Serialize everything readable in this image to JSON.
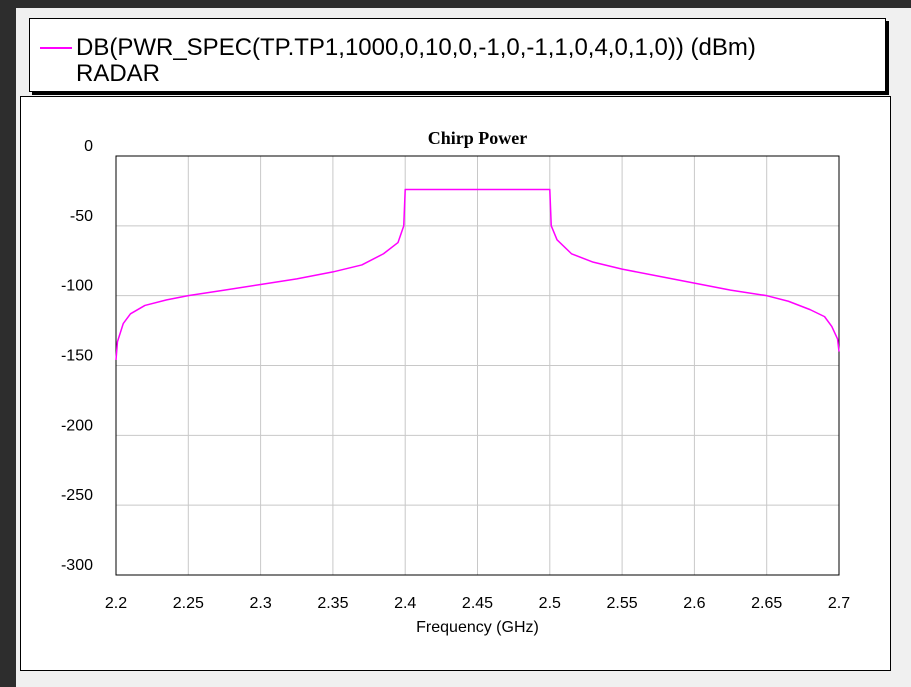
{
  "legend": {
    "entry": "DB(PWR_SPEC(TP.TP1,1000,0,10,0,-1,0,-1,1,0,4,0,1,0)) (dBm)",
    "sub": "RADAR",
    "line_color": "#ff00ff"
  },
  "chart_data": {
    "type": "line",
    "title": "Chirp Power",
    "xlabel": "Frequency (GHz)",
    "ylabel": "",
    "xlim": [
      2.2,
      2.7
    ],
    "ylim": [
      -300,
      0
    ],
    "xticks": [
      "2.2",
      "2.25",
      "2.3",
      "2.35",
      "2.4",
      "2.45",
      "2.5",
      "2.55",
      "2.6",
      "2.65",
      "2.7"
    ],
    "yticks": [
      "0",
      "-50",
      "-100",
      "-150",
      "-200",
      "-250",
      "-300"
    ],
    "grid": true,
    "series": [
      {
        "color": "#ff00ff",
        "x": [
          2.2,
          2.201,
          2.205,
          2.21,
          2.22,
          2.235,
          2.25,
          2.275,
          2.3,
          2.325,
          2.35,
          2.37,
          2.385,
          2.395,
          2.399,
          2.4,
          2.45,
          2.5,
          2.501,
          2.505,
          2.515,
          2.53,
          2.55,
          2.575,
          2.6,
          2.625,
          2.65,
          2.665,
          2.68,
          2.69,
          2.695,
          2.699,
          2.7
        ],
        "y": [
          -146,
          -133,
          -120,
          -113,
          -107,
          -103,
          -100,
          -96,
          -92,
          -88,
          -83,
          -78,
          -70,
          -62,
          -50,
          -24,
          -24,
          -24,
          -50,
          -60,
          -70,
          -76,
          -81,
          -86,
          -91,
          -96,
          -100,
          -104,
          -110,
          -115,
          -122,
          -131,
          -140
        ]
      }
    ]
  }
}
